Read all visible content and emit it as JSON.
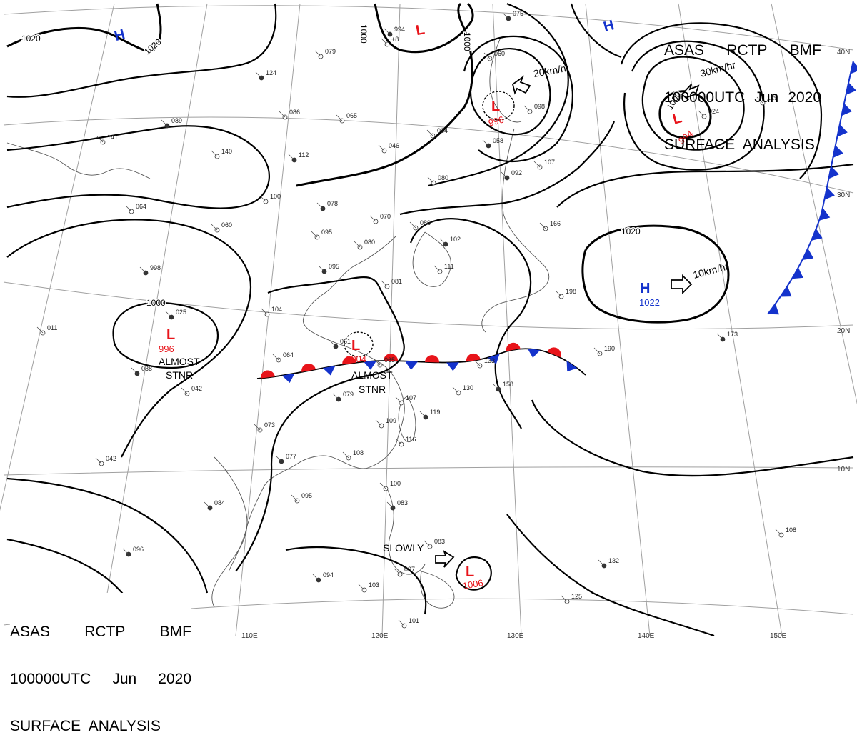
{
  "header": {
    "line1": [
      "ASAS",
      "RCTP",
      "BMF"
    ],
    "line2": [
      "100000UTC",
      "Jun",
      "2020"
    ],
    "line3": "SURFACE  ANALYSIS"
  },
  "colors": {
    "low": "#e8141a",
    "high": "#1433cc",
    "front_warm": "#e8141a",
    "front_cold": "#1433cc",
    "isobar": "#000000",
    "grid": "#9a9a9a"
  },
  "lon_labels": [
    "110E",
    "120E",
    "130E",
    "140E",
    "150E"
  ],
  "lat_labels": [
    "40N",
    "30N",
    "20N",
    "10N"
  ],
  "pressure_systems": [
    {
      "type": "H",
      "value": ""
    },
    {
      "type": "H",
      "value": ""
    },
    {
      "type": "L",
      "value": ""
    },
    {
      "type": "L",
      "value": "996"
    },
    {
      "type": "L",
      "value": "994"
    },
    {
      "type": "H",
      "value": "1022"
    },
    {
      "type": "L",
      "value": "996"
    },
    {
      "type": "L",
      "value": "1004"
    },
    {
      "type": "L",
      "value": "1006"
    }
  ],
  "isobar_labels": [
    "1020",
    "1020",
    "1000",
    "1000",
    "1000",
    "1000",
    "1020"
  ],
  "annotations": {
    "almost_stnr_1": [
      "ALMOST",
      "STNR"
    ],
    "almost_stnr_2": [
      "ALMOST",
      "STNR"
    ],
    "speed_1": "20km/hr",
    "speed_2": "30km/hr",
    "speed_3": "10km/hr",
    "slowly": "SLOWLY"
  },
  "station_obs": [
    "994",
    "+8",
    "079",
    "124",
    "065",
    "086",
    "089",
    "141",
    "140",
    "112",
    "046",
    "034",
    "058",
    "098",
    "080",
    "092",
    "107",
    "100",
    "078",
    "060",
    "064",
    "998",
    "070",
    "086",
    "102",
    "095",
    "080",
    "095",
    "111",
    "081",
    "025",
    "011",
    "104",
    "061",
    "064",
    "065",
    "079",
    "107",
    "130",
    "158",
    "133",
    "190",
    "173",
    "198",
    "166",
    "038",
    "042",
    "073",
    "077",
    "109",
    "116",
    "119",
    "108",
    "042",
    "084",
    "095",
    "100",
    "083",
    "083",
    "097",
    "094",
    "103",
    "101",
    "132",
    "125",
    "108",
    "096",
    "129",
    "024",
    "075",
    "060"
  ]
}
